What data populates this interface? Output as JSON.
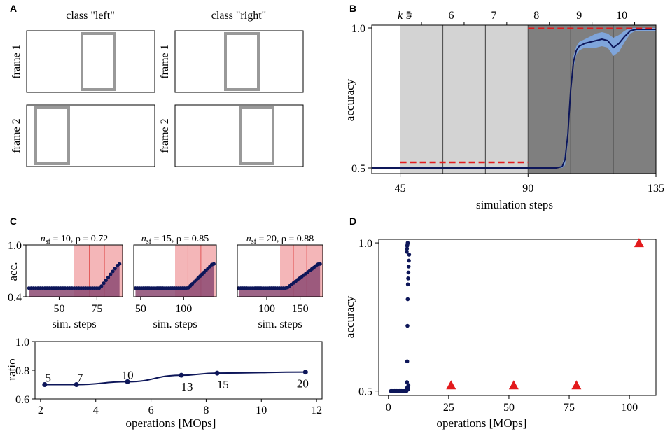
{
  "panel_labels": {
    "a": "A",
    "b": "B",
    "c": "C",
    "d": "D"
  },
  "colors": {
    "navy": "#0d1659",
    "red": "#e31a1c",
    "light_gray": "#d3d3d3",
    "dark_gray": "#7f7f7f",
    "band_blue": "#7fa8e0",
    "frame_gray": "#999999",
    "pink": "#f4b6b8",
    "pink_dark": "#8c4a72"
  },
  "panel_a": {
    "col_titles": [
      "class \"left\"",
      "class \"right\""
    ],
    "row_labels": [
      "frame 1",
      "frame 2"
    ]
  },
  "chart_data": [
    {
      "id": "B",
      "type": "line",
      "xlabel": "simulation steps",
      "ylabel": "accuracy",
      "xlim": [
        35,
        135
      ],
      "ylim": [
        0.48,
        1.01
      ],
      "xticks": [
        45,
        90,
        135
      ],
      "yticks": [
        0.5,
        1.0
      ],
      "ytick_labels": [
        "0.5",
        "1.0"
      ],
      "k_label": "k =",
      "k_values": [
        "5",
        "6",
        "7",
        "8",
        "9",
        "10"
      ],
      "k_positions": [
        45,
        60,
        75,
        90,
        105,
        120
      ],
      "k_tick_positions": [
        52.5,
        67.5,
        82.5,
        97.5,
        112.5,
        127.5
      ],
      "shaded_light": [
        45,
        90
      ],
      "shaded_dark": [
        90,
        135
      ],
      "dividers": [
        60,
        75,
        90,
        105,
        120
      ],
      "mean_x": [
        35,
        90,
        100,
        102,
        103,
        104,
        105,
        106,
        107,
        108,
        109,
        110,
        112,
        114,
        116,
        118,
        120,
        122,
        124,
        126,
        128,
        130,
        135
      ],
      "mean_y": [
        0.5,
        0.5,
        0.5,
        0.505,
        0.53,
        0.62,
        0.78,
        0.88,
        0.92,
        0.935,
        0.94,
        0.945,
        0.95,
        0.955,
        0.96,
        0.955,
        0.93,
        0.945,
        0.97,
        0.99,
        0.995,
        0.995,
        0.995
      ],
      "band_upper": [
        0.5,
        0.5,
        0.5,
        0.51,
        0.55,
        0.65,
        0.8,
        0.9,
        0.935,
        0.95,
        0.955,
        0.96,
        0.97,
        0.98,
        0.985,
        0.98,
        0.965,
        0.975,
        0.99,
        1.0,
        1.0,
        1.0,
        1.0
      ],
      "band_lower": [
        0.5,
        0.5,
        0.5,
        0.5,
        0.51,
        0.59,
        0.76,
        0.86,
        0.905,
        0.92,
        0.925,
        0.93,
        0.93,
        0.93,
        0.935,
        0.93,
        0.9,
        0.915,
        0.95,
        0.98,
        0.99,
        0.99,
        0.99
      ],
      "baseline_segments": [
        {
          "x0": 45,
          "x1": 90,
          "y": 0.52
        },
        {
          "x0": 90,
          "x1": 135,
          "y": 0.998
        }
      ]
    },
    {
      "id": "C-top",
      "type": "line",
      "ylabel": "acc.",
      "xlabel": "sim. steps",
      "ylim": [
        0.4,
        1.0
      ],
      "yticks": [
        0.4,
        1.0
      ],
      "ytick_labels": [
        "0.4",
        "1.0"
      ],
      "subplots": [
        {
          "title": "n_sf = 10, ρ = 0.72",
          "title_n": "n",
          "title_sub": "sf",
          "title_eq": " = 10, ρ = 0.72",
          "xlim": [
            28,
            92
          ],
          "xticks": [
            50,
            75
          ],
          "dark_start": 60,
          "dividers": [
            70,
            80
          ],
          "onset": 77,
          "end": 90
        },
        {
          "title": "n_sf = 15, ρ = 0.85",
          "title_n": "n",
          "title_sub": "sf",
          "title_eq": " = 15, ρ = 0.85",
          "xlim": [
            42,
            138
          ],
          "xticks": [
            50,
            100
          ],
          "dark_start": 90,
          "dividers": [
            105,
            120
          ],
          "onset": 105,
          "end": 135
        },
        {
          "title": "n_sf = 20, ρ = 0.88",
          "title_n": "n",
          "title_sub": "sf",
          "title_eq": " = 20, ρ = 0.88",
          "xlim": [
            56,
            184
          ],
          "xticks": [
            100,
            150
          ],
          "dark_start": 120,
          "dividers": [
            140,
            160
          ],
          "onset": 130,
          "end": 180
        }
      ]
    },
    {
      "id": "C-bottom",
      "type": "line",
      "xlabel": "operations [MOps]",
      "ylabel": "ratio",
      "xlim": [
        1.8,
        12.2
      ],
      "ylim": [
        0.6,
        1.0
      ],
      "xticks": [
        2,
        4,
        6,
        8,
        10,
        12
      ],
      "yticks": [
        0.6,
        0.8,
        1.0
      ],
      "ytick_labels": [
        "0.6",
        "0.8",
        "1.0"
      ],
      "x": [
        2.15,
        3.3,
        5.15,
        7.1,
        8.4,
        11.6
      ],
      "y": [
        0.7,
        0.7,
        0.72,
        0.765,
        0.78,
        0.787
      ],
      "point_labels": [
        "5",
        "7",
        "10",
        "13",
        "15",
        "20"
      ]
    },
    {
      "id": "D",
      "type": "scatter",
      "xlabel": "operations [MOps]",
      "ylabel": "accuracy",
      "xlim": [
        -4,
        111
      ],
      "ylim": [
        0.485,
        1.012
      ],
      "xticks": [
        0,
        25,
        50,
        75,
        100
      ],
      "yticks": [
        0.5,
        1.0
      ],
      "ytick_labels": [
        "0.5",
        "1.0"
      ],
      "dots_x": [
        1,
        1.5,
        2,
        2.5,
        3,
        3.5,
        4,
        4.5,
        5,
        5.5,
        6,
        6.5,
        7,
        7.5,
        7.6,
        7.7,
        7.8,
        7.9,
        8,
        8.1,
        8.2,
        8.3,
        8.4,
        8.5,
        8.6,
        7.6,
        7.7,
        7.8,
        7.9,
        8,
        8.1,
        8.2,
        8.3
      ],
      "dots_y": [
        0.5,
        0.5,
        0.5,
        0.5,
        0.5,
        0.5,
        0.5,
        0.5,
        0.5,
        0.5,
        0.5,
        0.5,
        0.5,
        0.5,
        0.51,
        0.53,
        0.6,
        0.72,
        0.81,
        0.86,
        0.88,
        0.9,
        0.92,
        0.94,
        0.96,
        0.97,
        0.98,
        0.99,
        0.995,
        1.0,
        0.505,
        0.515,
        0.52
      ],
      "triangles_x": [
        26,
        52,
        78,
        104
      ],
      "triangles_y": [
        0.52,
        0.52,
        0.52,
        1.0
      ]
    }
  ]
}
